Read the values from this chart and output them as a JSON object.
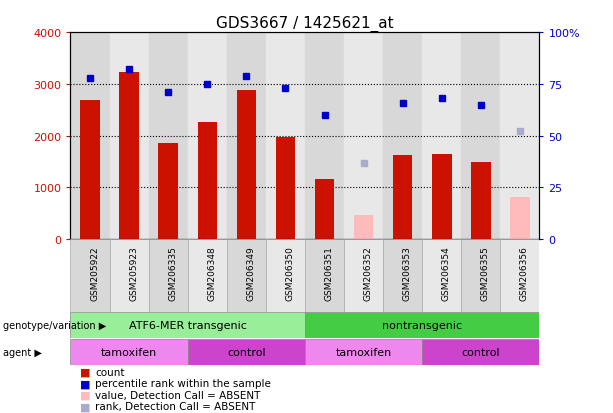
{
  "title": "GDS3667 / 1425621_at",
  "samples": [
    "GSM205922",
    "GSM205923",
    "GSM206335",
    "GSM206348",
    "GSM206349",
    "GSM206350",
    "GSM206351",
    "GSM206352",
    "GSM206353",
    "GSM206354",
    "GSM206355",
    "GSM206356"
  ],
  "count_values": [
    2680,
    3230,
    1850,
    2260,
    2880,
    1980,
    1160,
    null,
    1620,
    1650,
    1490,
    null
  ],
  "count_absent": [
    null,
    null,
    null,
    null,
    null,
    null,
    null,
    470,
    null,
    null,
    null,
    820
  ],
  "percentile_values": [
    78,
    82,
    71,
    75,
    79,
    73,
    60,
    null,
    66,
    68,
    65,
    null
  ],
  "percentile_absent": [
    null,
    null,
    null,
    null,
    null,
    null,
    null,
    37,
    null,
    null,
    null,
    52
  ],
  "ylim_left": [
    0,
    4000
  ],
  "ylim_right": [
    0,
    100
  ],
  "yticks_left": [
    0,
    1000,
    2000,
    3000,
    4000
  ],
  "ytick_labels_left": [
    "0",
    "1000",
    "2000",
    "3000",
    "4000"
  ],
  "yticks_right": [
    0,
    25,
    50,
    75,
    100
  ],
  "ytick_labels_right": [
    "0",
    "25",
    "50",
    "75",
    "100%"
  ],
  "bar_color": "#cc1100",
  "bar_absent_color": "#ffbbbb",
  "dot_color": "#0000cc",
  "dot_absent_color": "#aaaacc",
  "background_color": "#ffffff",
  "plot_bg": "#ffffff",
  "col_bg_even": "#d8d8d8",
  "col_bg_odd": "#e8e8e8",
  "groups": [
    {
      "label": "ATF6-MER transgenic",
      "start": 0,
      "end": 6,
      "color": "#99ee99"
    },
    {
      "label": "nontransgenic",
      "start": 6,
      "end": 12,
      "color": "#44cc44"
    }
  ],
  "agents": [
    {
      "label": "tamoxifen",
      "start": 0,
      "end": 3,
      "color": "#ee88ee"
    },
    {
      "label": "control",
      "start": 3,
      "end": 6,
      "color": "#cc44cc"
    },
    {
      "label": "tamoxifen",
      "start": 6,
      "end": 9,
      "color": "#ee88ee"
    },
    {
      "label": "control",
      "start": 9,
      "end": 12,
      "color": "#cc44cc"
    }
  ],
  "legend_items": [
    {
      "label": "count",
      "color": "#cc1100"
    },
    {
      "label": "percentile rank within the sample",
      "color": "#0000cc"
    },
    {
      "label": "value, Detection Call = ABSENT",
      "color": "#ffbbbb"
    },
    {
      "label": "rank, Detection Call = ABSENT",
      "color": "#aaaacc"
    }
  ],
  "left_label_genotype": "genotype/variation",
  "left_label_agent": "agent",
  "bar_width": 0.5,
  "dot_size": 5
}
